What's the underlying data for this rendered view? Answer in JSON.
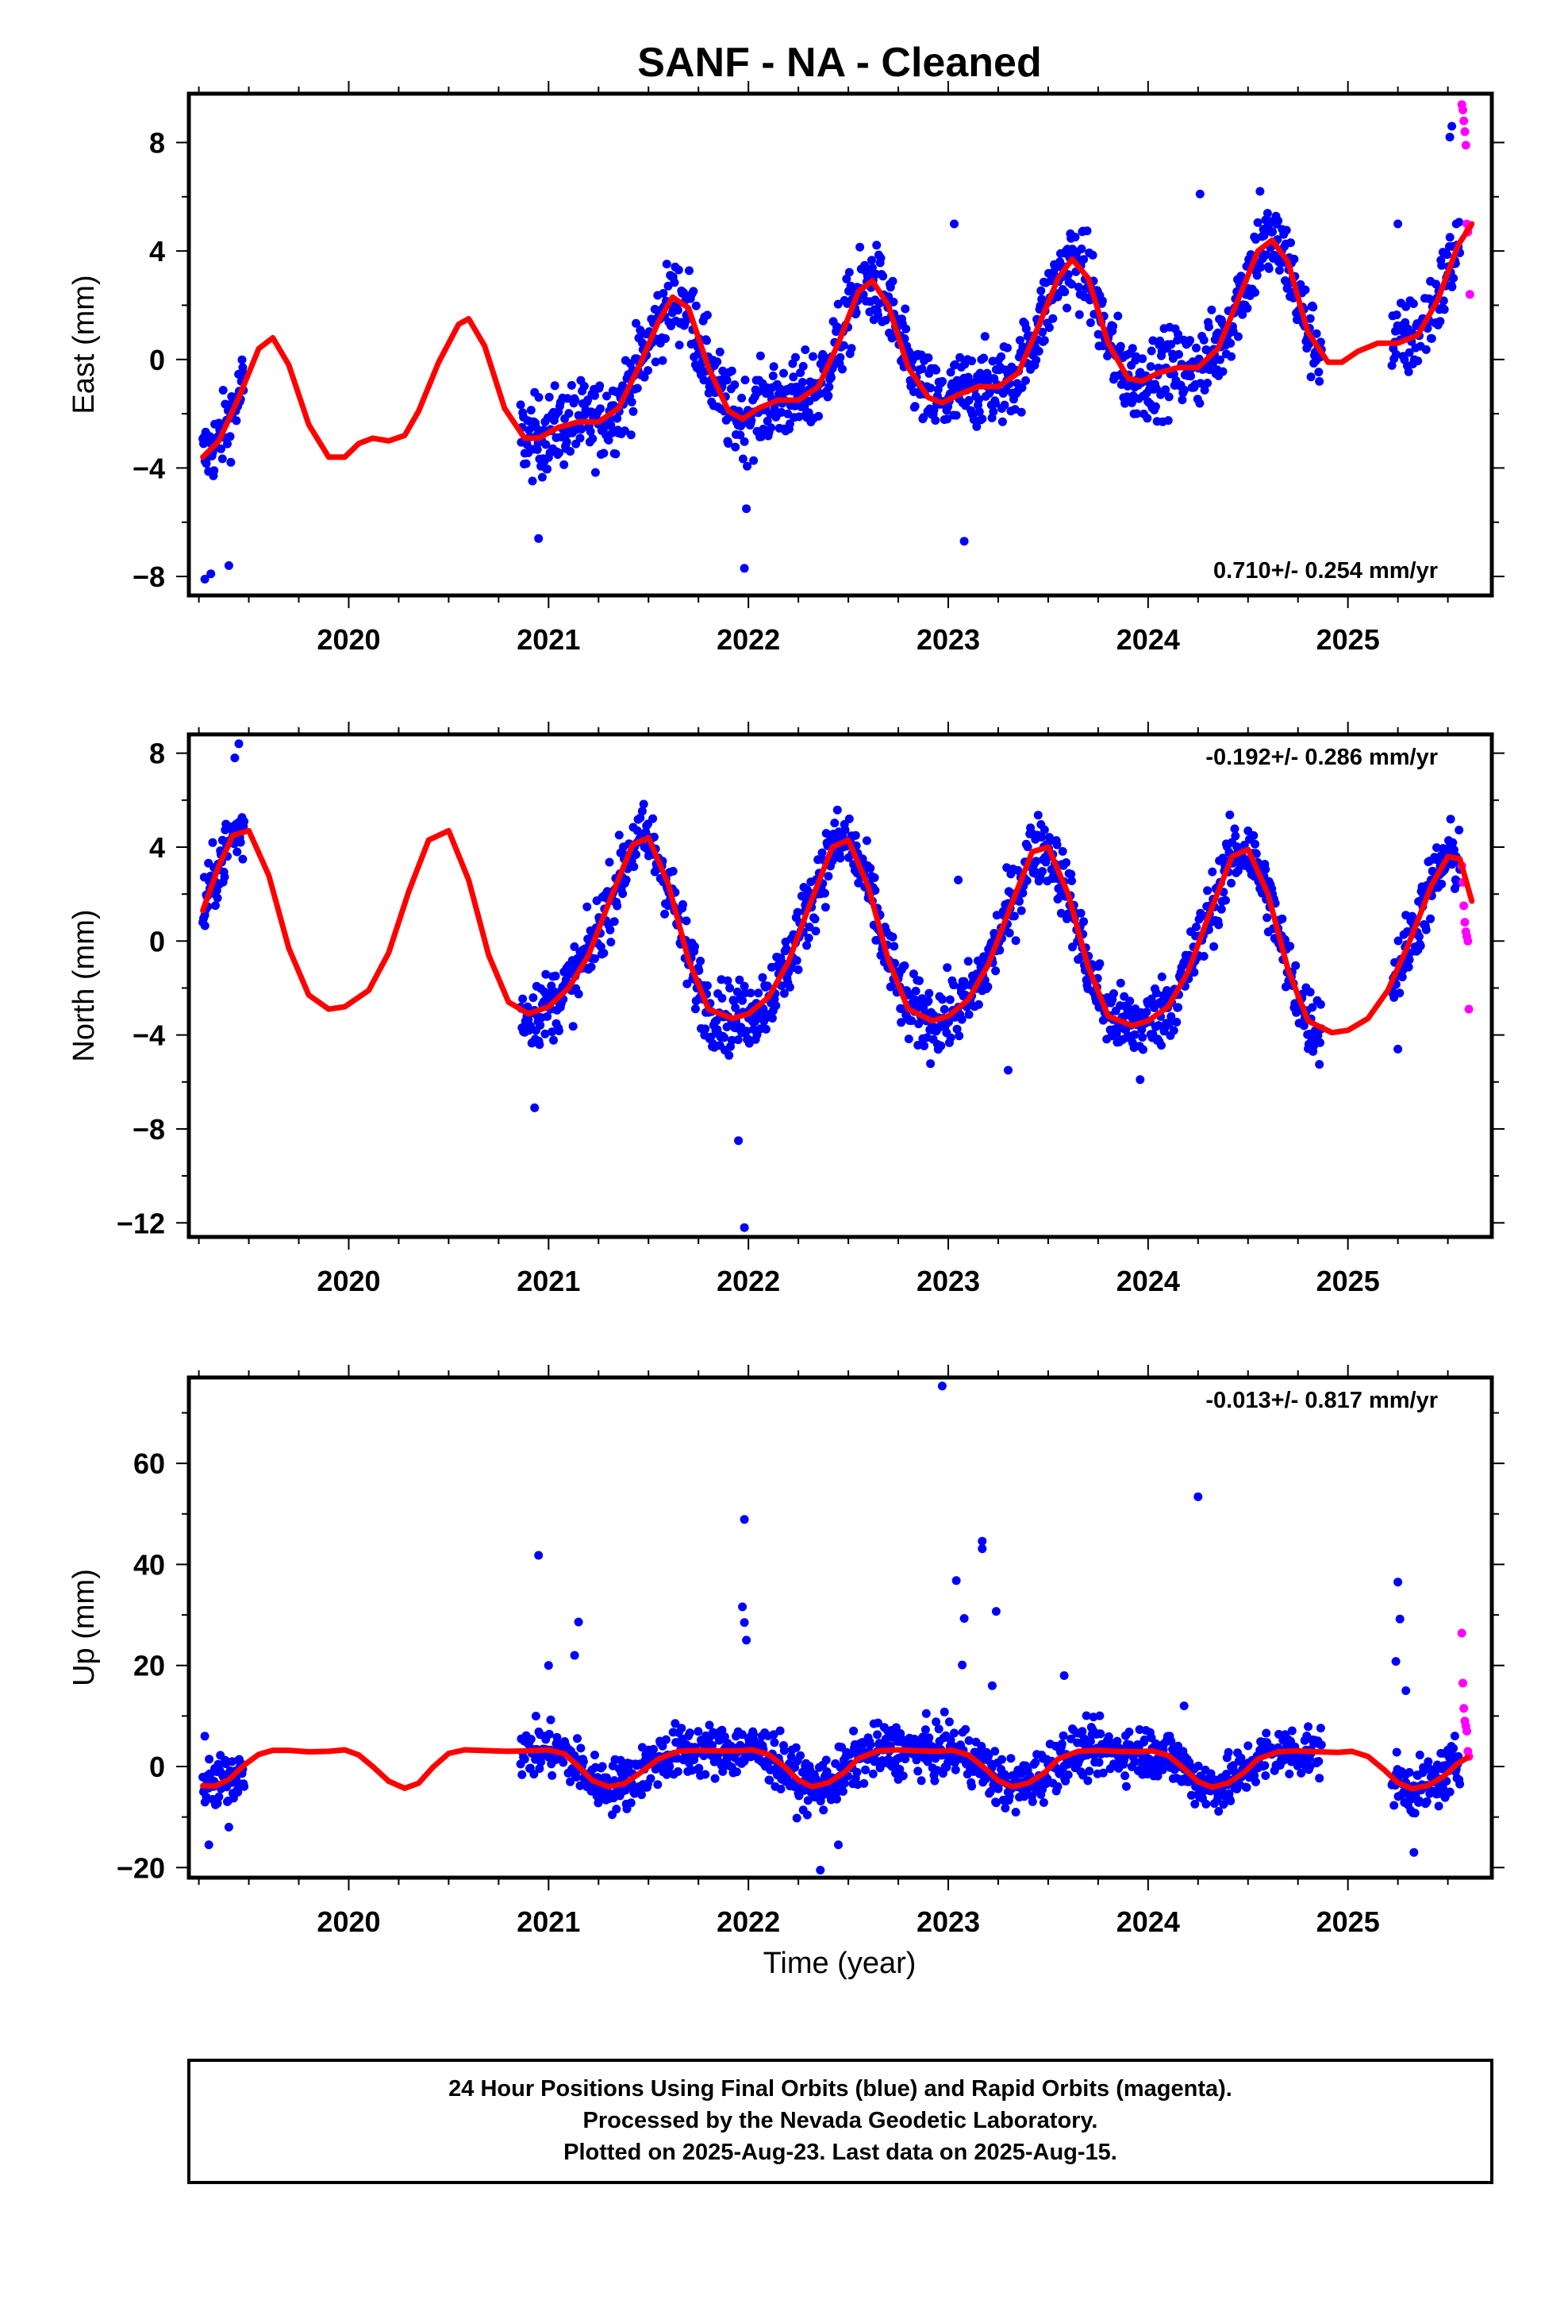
{
  "title": "SANF  - NA - Cleaned",
  "xlabel": "Time (year)",
  "footer": {
    "line1": "24 Hour Positions Using Final Orbits (blue) and Rapid Orbits (magenta).",
    "line2": "Processed by the Nevada Geodetic Laboratory.",
    "line3": "Plotted on 2025-Aug-23. Last data on 2025-Aug-15."
  },
  "colors": {
    "final": "#0000ff",
    "rapid": "#ff00ff",
    "model": "#ff0000",
    "axis": "#000000"
  },
  "chart_data": [
    {
      "type": "scatter",
      "ylabel": "East (mm)",
      "rate": "0.710+/- 0.254 mm/yr",
      "xlim": [
        2019.2,
        2025.72
      ],
      "ylim": [
        -8.7,
        9.8
      ],
      "yticks": [
        -8,
        -4,
        0,
        4,
        8
      ],
      "ytick_labels": [
        "−8",
        "−4",
        "0",
        "4",
        "8"
      ],
      "xticks": [
        2020,
        2021,
        2022,
        2023,
        2024,
        2025
      ],
      "xtick_labels": [
        "2020",
        "2021",
        "2022",
        "2023",
        "2024",
        "2025"
      ],
      "model": {
        "name": "model fit",
        "x": [
          2019.27,
          2019.35,
          2019.45,
          2019.55,
          2019.62,
          2019.7,
          2019.8,
          2019.9,
          2019.98,
          2020.05,
          2020.12,
          2020.2,
          2020.28,
          2020.35,
          2020.45,
          2020.55,
          2020.6,
          2020.68,
          2020.78,
          2020.88,
          2020.95,
          2021.05,
          2021.15,
          2021.25,
          2021.35,
          2021.45,
          2021.55,
          2021.62,
          2021.7,
          2021.8,
          2021.9,
          2021.97,
          2022.05,
          2022.15,
          2022.25,
          2022.35,
          2022.45,
          2022.55,
          2022.62,
          2022.7,
          2022.8,
          2022.9,
          2022.97,
          2023.05,
          2023.15,
          2023.25,
          2023.35,
          2023.45,
          2023.55,
          2023.62,
          2023.7,
          2023.8,
          2023.9,
          2023.97,
          2024.05,
          2024.15,
          2024.25,
          2024.35,
          2024.45,
          2024.55,
          2024.62,
          2024.7,
          2024.8,
          2024.9,
          2024.97,
          2025.05,
          2025.15,
          2025.25,
          2025.35,
          2025.45,
          2025.55,
          2025.62
        ],
        "y": [
          -3.6,
          -3.0,
          -1.4,
          0.4,
          0.8,
          -0.2,
          -2.4,
          -3.6,
          -3.6,
          -3.1,
          -2.9,
          -3.0,
          -2.8,
          -1.9,
          -0.1,
          1.3,
          1.5,
          0.5,
          -1.8,
          -2.9,
          -2.9,
          -2.5,
          -2.3,
          -2.3,
          -1.8,
          -0.3,
          1.4,
          2.3,
          1.9,
          -0.3,
          -1.9,
          -2.2,
          -1.8,
          -1.5,
          -1.5,
          -1.0,
          0.6,
          2.5,
          2.9,
          2.0,
          -0.3,
          -1.4,
          -1.6,
          -1.3,
          -1.0,
          -1.0,
          -0.5,
          1.2,
          3.0,
          3.7,
          3.0,
          0.6,
          -0.7,
          -0.8,
          -0.5,
          -0.3,
          -0.3,
          0.4,
          2.2,
          4.0,
          4.4,
          3.6,
          1.0,
          -0.1,
          -0.1,
          0.3,
          0.6,
          0.6,
          0.9,
          2.2,
          4.2,
          5.0
        ]
      },
      "final_segments": [
        {
          "start": 2019.27,
          "end": 2019.48,
          "step": 0.0035,
          "noise": 0.9,
          "outliers": [
            [
              2019.28,
              -8.1
            ],
            [
              2019.31,
              -7.9
            ],
            [
              2019.4,
              -7.6
            ]
          ]
        },
        {
          "start": 2020.86,
          "end": 2024.87,
          "step": 0.0035,
          "noise": 1.0,
          "outliers": [
            [
              2020.95,
              -6.6
            ],
            [
              2021.99,
              -5.5
            ],
            [
              2021.98,
              -7.7
            ],
            [
              2023.08,
              -6.7
            ],
            [
              2023.03,
              5.0
            ],
            [
              2024.26,
              6.1
            ],
            [
              2024.56,
              6.2
            ]
          ]
        },
        {
          "start": 2025.22,
          "end": 2025.56,
          "step": 0.0035,
          "noise": 1.0,
          "outliers": [
            [
              2025.25,
              5.0
            ],
            [
              2025.51,
              8.2
            ],
            [
              2025.52,
              8.6
            ]
          ]
        }
      ],
      "rapid_points": {
        "x": [
          2025.57,
          2025.575,
          2025.58,
          2025.585,
          2025.59,
          2025.595,
          2025.6,
          2025.605,
          2025.61
        ],
        "y": [
          9.4,
          9.2,
          8.8,
          8.4,
          7.9,
          5.0,
          4.7,
          4.9,
          2.4
        ]
      }
    },
    {
      "type": "scatter",
      "ylabel": "North (mm)",
      "rate": "-0.192+/- 0.286 mm/yr",
      "xlim": [
        2019.2,
        2025.72
      ],
      "ylim": [
        -12.6,
        8.8
      ],
      "yticks": [
        -12,
        -8,
        -4,
        0,
        4,
        8
      ],
      "ytick_labels": [
        "−12",
        "−8",
        "−4",
        "0",
        "4",
        "8"
      ],
      "xticks": [
        2020,
        2021,
        2022,
        2023,
        2024,
        2025
      ],
      "xtick_labels": [
        "2020",
        "2021",
        "2022",
        "2023",
        "2024",
        "2025"
      ],
      "model": {
        "name": "model fit",
        "x": [
          2019.27,
          2019.35,
          2019.42,
          2019.5,
          2019.6,
          2019.7,
          2019.8,
          2019.9,
          2019.98,
          2020.1,
          2020.2,
          2020.3,
          2020.4,
          2020.5,
          2020.6,
          2020.7,
          2020.8,
          2020.9,
          2021.0,
          2021.1,
          2021.2,
          2021.3,
          2021.42,
          2021.5,
          2021.6,
          2021.7,
          2021.8,
          2021.92,
          2022.0,
          2022.1,
          2022.2,
          2022.3,
          2022.42,
          2022.5,
          2022.6,
          2022.7,
          2022.8,
          2022.92,
          2023.0,
          2023.1,
          2023.2,
          2023.3,
          2023.42,
          2023.5,
          2023.6,
          2023.7,
          2023.8,
          2023.92,
          2024.0,
          2024.1,
          2024.2,
          2024.3,
          2024.42,
          2024.5,
          2024.6,
          2024.7,
          2024.8,
          2024.92,
          2025.0,
          2025.1,
          2025.2,
          2025.3,
          2025.42,
          2025.5,
          2025.56,
          2025.62
        ],
        "y": [
          1.3,
          3.2,
          4.5,
          4.7,
          2.8,
          -0.3,
          -2.3,
          -2.9,
          -2.8,
          -2.1,
          -0.5,
          2.1,
          4.3,
          4.7,
          2.6,
          -0.6,
          -2.6,
          -3.1,
          -2.8,
          -2.0,
          -0.6,
          1.6,
          4.1,
          4.4,
          2.4,
          -0.8,
          -2.9,
          -3.3,
          -3.1,
          -2.4,
          -0.9,
          1.4,
          4.0,
          4.3,
          2.3,
          -0.8,
          -2.9,
          -3.4,
          -3.2,
          -2.5,
          -1.0,
          1.2,
          3.8,
          4.0,
          2.0,
          -1.1,
          -3.2,
          -3.6,
          -3.4,
          -2.8,
          -1.3,
          1.0,
          3.6,
          3.9,
          2.0,
          -1.2,
          -3.4,
          -3.9,
          -3.8,
          -3.3,
          -2.1,
          -0.2,
          2.4,
          3.6,
          3.5,
          1.7
        ]
      },
      "final_segments": [
        {
          "start": 2019.27,
          "end": 2019.48,
          "step": 0.0035,
          "noise": 0.9,
          "outliers": [
            [
              2019.45,
              8.4
            ],
            [
              2019.43,
              7.8
            ],
            [
              2019.28,
              1.1
            ]
          ]
        },
        {
          "start": 2020.86,
          "end": 2024.87,
          "step": 0.0035,
          "noise": 1.0,
          "outliers": [
            [
              2020.93,
              -7.1
            ],
            [
              2021.98,
              -12.2
            ],
            [
              2021.95,
              -8.5
            ],
            [
              2023.3,
              -5.5
            ],
            [
              2023.05,
              2.6
            ],
            [
              2023.96,
              -5.9
            ]
          ]
        },
        {
          "start": 2025.22,
          "end": 2025.56,
          "step": 0.0035,
          "noise": 1.0,
          "outliers": [
            [
              2025.25,
              -4.6
            ]
          ]
        }
      ],
      "rapid_points": {
        "x": [
          2025.57,
          2025.575,
          2025.58,
          2025.585,
          2025.59,
          2025.595,
          2025.6,
          2025.605
        ],
        "y": [
          3.2,
          2.5,
          1.5,
          0.8,
          0.4,
          0.2,
          0.0,
          -2.9
        ]
      }
    },
    {
      "type": "scatter",
      "ylabel": "Up (mm)",
      "rate": "-0.013+/- 0.817 mm/yr",
      "xlim": [
        2019.2,
        2025.72
      ],
      "ylim": [
        -22,
        77
      ],
      "yticks": [
        -20,
        0,
        20,
        40,
        60
      ],
      "ytick_labels": [
        "−20",
        "0",
        "20",
        "40",
        "60"
      ],
      "xticks": [
        2020,
        2021,
        2022,
        2023,
        2024,
        2025
      ],
      "xtick_labels": [
        "2020",
        "2021",
        "2022",
        "2023",
        "2024",
        "2025"
      ],
      "model": {
        "name": "model fit",
        "x": [
          2019.27,
          2019.33,
          2019.4,
          2019.48,
          2019.55,
          2019.62,
          2019.7,
          2019.8,
          2019.9,
          2019.98,
          2020.05,
          2020.12,
          2020.2,
          2020.28,
          2020.35,
          2020.42,
          2020.5,
          2020.58,
          2020.65,
          2020.72,
          2020.8,
          2020.9,
          2021.0,
          2021.08,
          2021.15,
          2021.22,
          2021.3,
          2021.38,
          2021.45,
          2021.55,
          2021.65,
          2021.75,
          2021.85,
          2021.95,
          2022.02,
          2022.1,
          2022.18,
          2022.25,
          2022.32,
          2022.4,
          2022.48,
          2022.55,
          2022.65,
          2022.75,
          2022.85,
          2022.95,
          2023.02,
          2023.1,
          2023.18,
          2023.25,
          2023.32,
          2023.4,
          2023.48,
          2023.55,
          2023.65,
          2023.75,
          2023.85,
          2023.95,
          2024.02,
          2024.1,
          2024.18,
          2024.25,
          2024.32,
          2024.4,
          2024.48,
          2024.55,
          2024.65,
          2024.75,
          2024.85,
          2024.95,
          2025.02,
          2025.1,
          2025.18,
          2025.25,
          2025.32,
          2025.4,
          2025.48,
          2025.55,
          2025.6
        ],
        "y": [
          -3.8,
          -3.9,
          -2.6,
          0.4,
          2.4,
          3.2,
          3.2,
          2.9,
          3.0,
          3.3,
          2.3,
          0.0,
          -2.9,
          -4.3,
          -3.3,
          -0.2,
          2.6,
          3.3,
          3.2,
          3.1,
          3.0,
          3.1,
          3.3,
          2.5,
          0.0,
          -2.8,
          -4.0,
          -3.4,
          -1.5,
          1.5,
          3.0,
          3.2,
          3.1,
          3.1,
          3.3,
          2.4,
          0.0,
          -2.7,
          -4.0,
          -3.2,
          -1.2,
          1.6,
          3.1,
          3.3,
          3.1,
          3.0,
          3.2,
          2.3,
          -0.2,
          -2.8,
          -4.0,
          -3.3,
          -1.3,
          1.5,
          3.0,
          3.2,
          3.0,
          2.9,
          3.1,
          2.2,
          -0.4,
          -3.0,
          -4.1,
          -3.3,
          -1.2,
          1.5,
          2.9,
          3.1,
          2.9,
          2.8,
          3.0,
          2.0,
          -0.6,
          -3.2,
          -4.4,
          -3.8,
          -1.9,
          0.6,
          1.8
        ]
      },
      "final_segments": [
        {
          "start": 2019.27,
          "end": 2019.48,
          "step": 0.0035,
          "noise": 3.5,
          "outliers": [
            [
              2019.28,
              6.0
            ],
            [
              2019.3,
              -15.5
            ],
            [
              2019.4,
              -12.0
            ]
          ]
        },
        {
          "start": 2020.86,
          "end": 2024.87,
          "step": 0.0035,
          "noise": 3.5,
          "outliers": [
            [
              2020.95,
              41.8
            ],
            [
              2021.15,
              28.6
            ],
            [
              2021.0,
              20.0
            ],
            [
              2021.13,
              22.0
            ],
            [
              2021.98,
              48.9
            ],
            [
              2021.97,
              31.6
            ],
            [
              2021.98,
              28.5
            ],
            [
              2021.99,
              25.0
            ],
            [
              2022.36,
              -20.5
            ],
            [
              2022.45,
              -15.5
            ],
            [
              2022.97,
              75.3
            ],
            [
              2023.04,
              36.8
            ],
            [
              2023.17,
              44.6
            ],
            [
              2023.17,
              43.1
            ],
            [
              2023.08,
              29.3
            ],
            [
              2023.07,
              20.1
            ],
            [
              2023.24,
              30.7
            ],
            [
              2023.22,
              16.0
            ],
            [
              2023.58,
              18.0
            ],
            [
              2024.25,
              53.4
            ],
            [
              2024.18,
              12.0
            ]
          ]
        },
        {
          "start": 2025.22,
          "end": 2025.56,
          "step": 0.0035,
          "noise": 3.5,
          "outliers": [
            [
              2025.25,
              36.5
            ],
            [
              2025.26,
              29.2
            ],
            [
              2025.24,
              20.8
            ],
            [
              2025.29,
              15.0
            ],
            [
              2025.33,
              -17.0
            ]
          ]
        }
      ],
      "rapid_points": {
        "x": [
          2025.57,
          2025.575,
          2025.58,
          2025.585,
          2025.59,
          2025.595,
          2025.6,
          2025.605
        ],
        "y": [
          26.4,
          16.5,
          11.5,
          9.0,
          8.0,
          7.0,
          3.0,
          2.0
        ]
      }
    }
  ]
}
